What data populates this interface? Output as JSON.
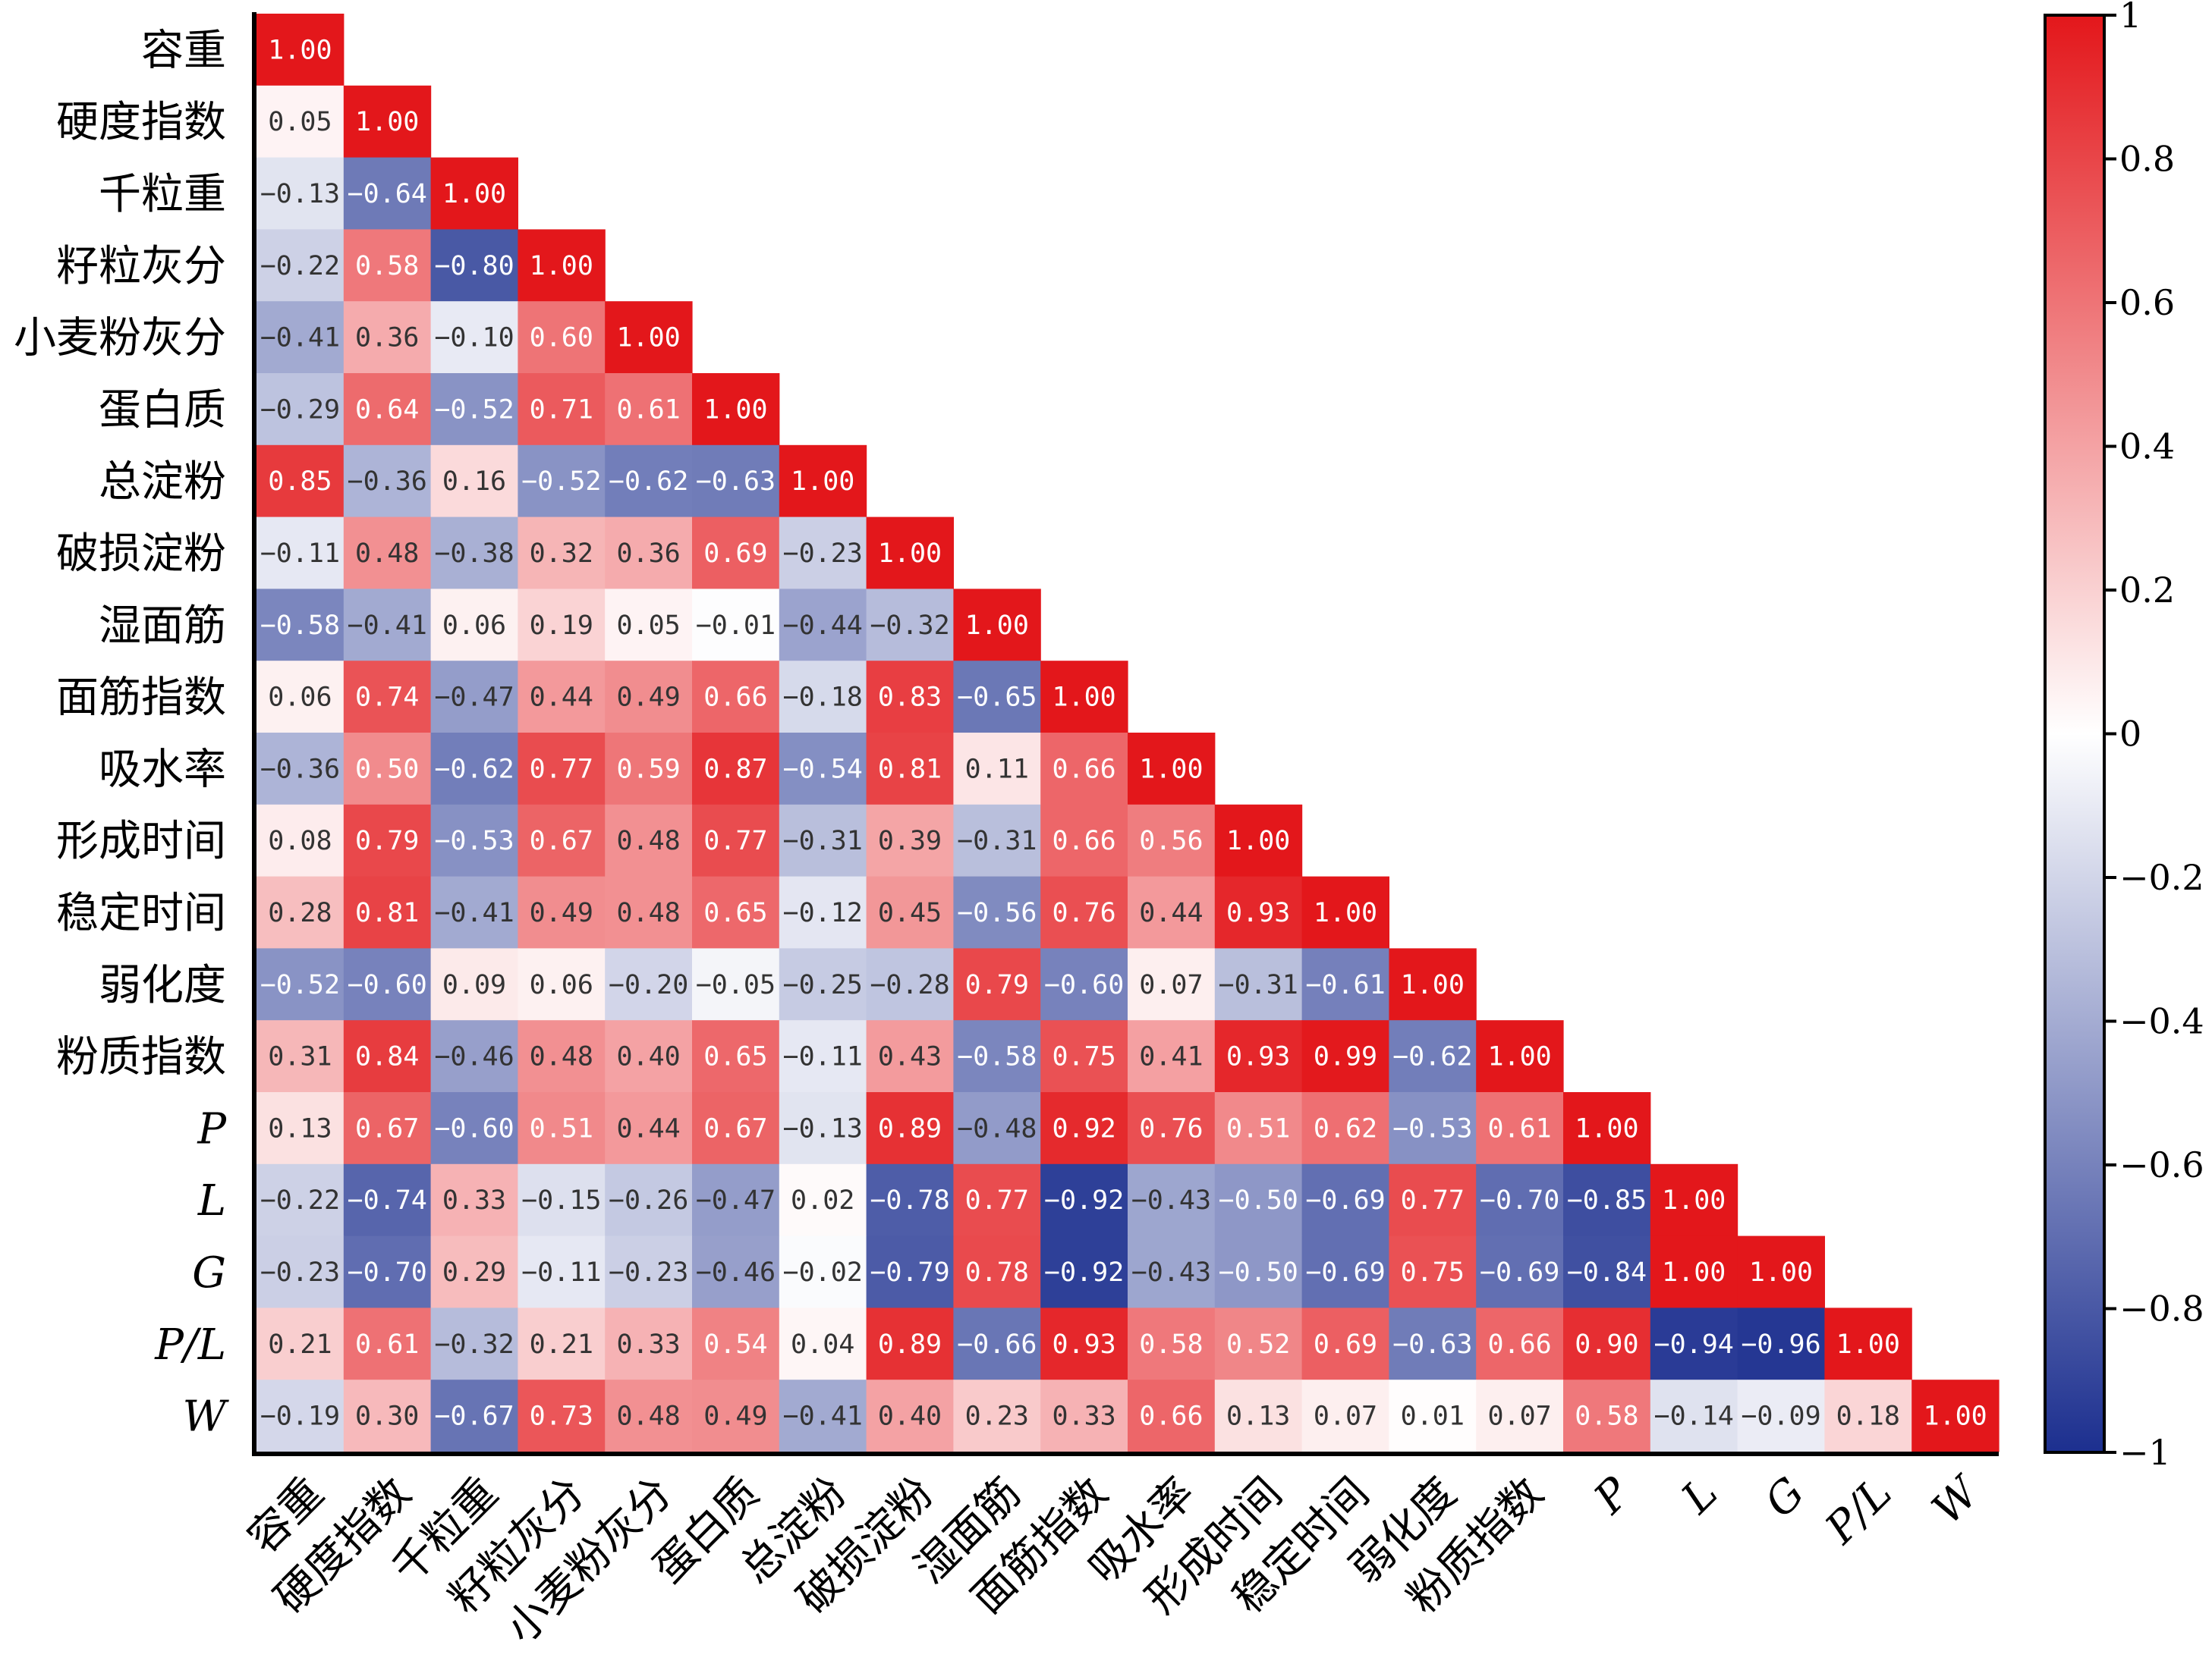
{
  "chart_data": {
    "type": "heatmap",
    "title": "",
    "xlabel": "",
    "ylabel": "",
    "variables": [
      "容重",
      "硬度指数",
      "千粒重",
      "籽粒灰分",
      "小麦粉灰分",
      "蛋白质",
      "总淀粉",
      "破损淀粉",
      "湿面筋",
      "面筋指数",
      "吸水率",
      "形成时间",
      "稳定时间",
      "弱化度",
      "粉质指数",
      "P",
      "L",
      "G",
      "P/L",
      "W"
    ],
    "italic_variables": [
      "P",
      "L",
      "G",
      "P/L",
      "W"
    ],
    "matrix": [
      [
        1.0
      ],
      [
        0.05,
        1.0
      ],
      [
        -0.13,
        -0.64,
        1.0
      ],
      [
        -0.22,
        0.58,
        -0.8,
        1.0
      ],
      [
        -0.41,
        0.36,
        -0.1,
        0.6,
        1.0
      ],
      [
        -0.29,
        0.64,
        -0.52,
        0.71,
        0.61,
        1.0
      ],
      [
        0.85,
        -0.36,
        0.16,
        -0.52,
        -0.62,
        -0.63,
        1.0
      ],
      [
        -0.11,
        0.48,
        -0.38,
        0.32,
        0.36,
        0.69,
        -0.23,
        1.0
      ],
      [
        -0.58,
        -0.41,
        0.06,
        0.19,
        0.05,
        -0.01,
        -0.44,
        -0.32,
        1.0
      ],
      [
        0.06,
        0.74,
        -0.47,
        0.44,
        0.49,
        0.66,
        -0.18,
        0.83,
        -0.65,
        1.0
      ],
      [
        -0.36,
        0.5,
        -0.62,
        0.77,
        0.59,
        0.87,
        -0.54,
        0.81,
        0.11,
        0.66,
        1.0
      ],
      [
        0.08,
        0.79,
        -0.53,
        0.67,
        0.48,
        0.77,
        -0.31,
        0.39,
        -0.31,
        0.66,
        0.56,
        1.0
      ],
      [
        0.28,
        0.81,
        -0.41,
        0.49,
        0.48,
        0.65,
        -0.12,
        0.45,
        -0.56,
        0.76,
        0.44,
        0.93,
        1.0
      ],
      [
        -0.52,
        -0.6,
        0.09,
        0.06,
        -0.2,
        -0.05,
        -0.25,
        -0.28,
        0.79,
        -0.6,
        0.07,
        -0.31,
        -0.61,
        1.0
      ],
      [
        0.31,
        0.84,
        -0.46,
        0.48,
        0.4,
        0.65,
        -0.11,
        0.43,
        -0.58,
        0.75,
        0.41,
        0.93,
        0.99,
        -0.62,
        1.0
      ],
      [
        0.13,
        0.67,
        -0.6,
        0.51,
        0.44,
        0.67,
        -0.13,
        0.89,
        -0.48,
        0.92,
        0.76,
        0.51,
        0.62,
        -0.53,
        0.61,
        1.0
      ],
      [
        -0.22,
        -0.74,
        0.33,
        -0.15,
        -0.26,
        -0.47,
        0.02,
        -0.78,
        0.77,
        -0.92,
        -0.43,
        -0.5,
        -0.69,
        0.77,
        -0.7,
        -0.85,
        1.0
      ],
      [
        -0.23,
        -0.7,
        0.29,
        -0.11,
        -0.23,
        -0.46,
        -0.02,
        -0.79,
        0.78,
        -0.92,
        -0.43,
        -0.5,
        -0.69,
        0.75,
        -0.69,
        -0.84,
        1.0,
        1.0
      ],
      [
        0.21,
        0.61,
        -0.32,
        0.21,
        0.33,
        0.54,
        0.04,
        0.89,
        -0.66,
        0.93,
        0.58,
        0.52,
        0.69,
        -0.63,
        0.66,
        0.9,
        -0.94,
        -0.96,
        1.0
      ],
      [
        -0.19,
        0.3,
        -0.67,
        0.73,
        0.48,
        0.49,
        -0.41,
        0.4,
        0.23,
        0.33,
        0.66,
        0.13,
        0.07,
        0.01,
        0.07,
        0.58,
        -0.14,
        -0.09,
        0.18,
        1.0
      ]
    ],
    "value_format_decimals": 2,
    "color_scale": {
      "min": -1,
      "max": 1,
      "low": "#1c2f8f",
      "mid": "#ffffff",
      "high": "#e3171b"
    },
    "colorbar_ticks": [
      "1",
      "0.8",
      "0.6",
      "0.4",
      "0.2",
      "0",
      "−0.2",
      "−0.4",
      "−0.6",
      "−0.8",
      "−1"
    ],
    "colorbar_tick_values": [
      1,
      0.8,
      0.6,
      0.4,
      0.2,
      0,
      -0.2,
      -0.4,
      -0.6,
      -0.8,
      -1
    ],
    "grid": false,
    "legend": "right"
  }
}
